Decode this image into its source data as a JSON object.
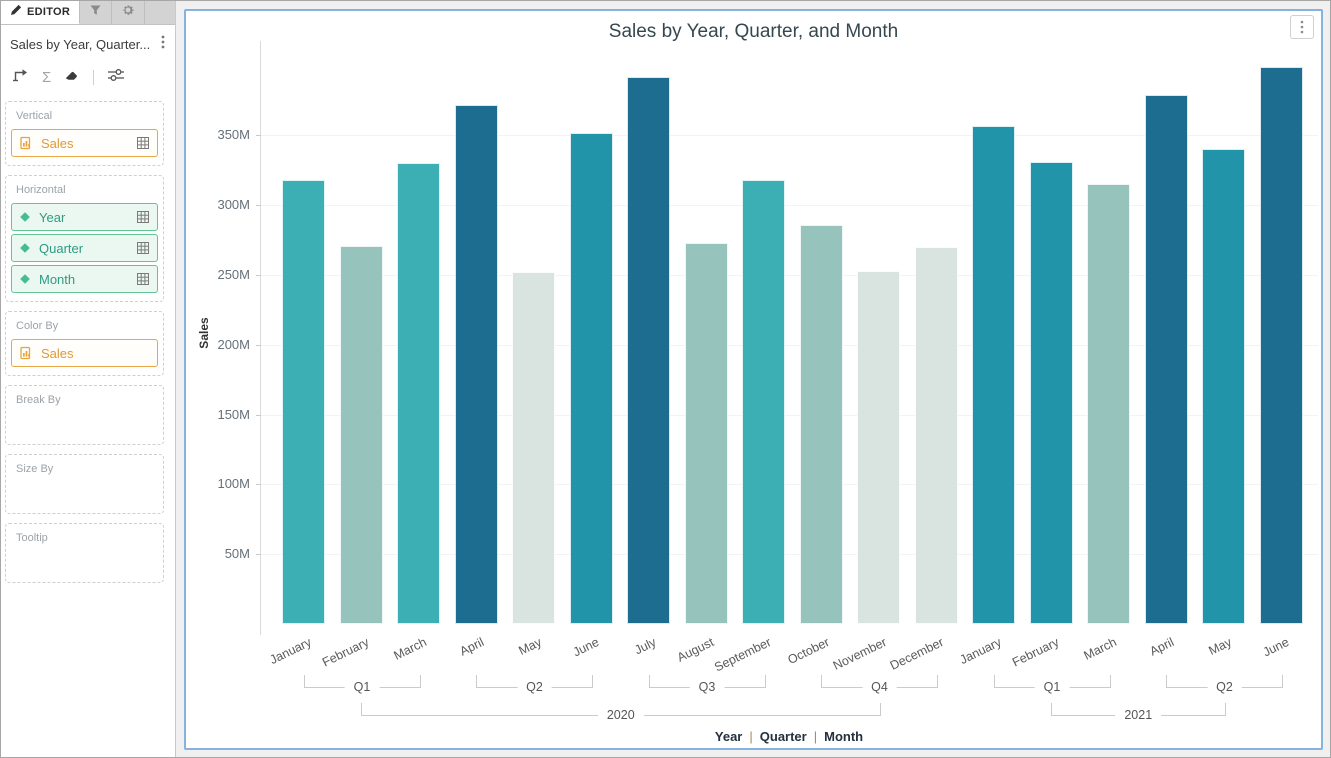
{
  "sidebar": {
    "tabs": [
      {
        "name": "editor",
        "label": "EDITOR",
        "icon": "pencil-icon",
        "active": true
      },
      {
        "name": "filters",
        "icon": "filter-icon",
        "active": false
      },
      {
        "name": "settings",
        "icon": "gear-icon",
        "active": false
      }
    ],
    "widget_title": "Sales by Year, Quarter...",
    "toolbar_icons": [
      "drill-path-icon",
      "sigma-icon",
      "eraser-icon",
      "sliders-icon"
    ],
    "sections": [
      {
        "label": "Vertical",
        "pills": [
          {
            "label": "Sales",
            "type": "measure",
            "grid_icon": true
          }
        ]
      },
      {
        "label": "Horizontal",
        "pills": [
          {
            "label": "Year",
            "type": "dimension",
            "grid_icon": true
          },
          {
            "label": "Quarter",
            "type": "dimension",
            "grid_icon": true
          },
          {
            "label": "Month",
            "type": "dimension",
            "grid_icon": true
          }
        ]
      },
      {
        "label": "Color By",
        "pills": [
          {
            "label": "Sales",
            "type": "measure",
            "grid_icon": false
          }
        ]
      },
      {
        "label": "Break By",
        "pills": []
      },
      {
        "label": "Size By",
        "pills": []
      },
      {
        "label": "Tooltip",
        "pills": []
      }
    ]
  },
  "chart_data": {
    "type": "bar",
    "title": "Sales by Year, Quarter, and Month",
    "ylabel": "Sales",
    "xlabel": "",
    "unit": "M",
    "ylim": [
      0,
      418
    ],
    "grid": true,
    "y_ticks": [
      "50M",
      "100M",
      "150M",
      "200M",
      "250M",
      "300M",
      "350M"
    ],
    "legend": [
      "Year",
      "Quarter",
      "Month"
    ],
    "legend_separator": "|",
    "points": [
      {
        "year": "2020",
        "quarter": "Q1",
        "month": "January",
        "value": 318,
        "color": "#3CAFB4"
      },
      {
        "year": "2020",
        "quarter": "Q1",
        "month": "February",
        "value": 271,
        "color": "#96C3BC"
      },
      {
        "year": "2020",
        "quarter": "Q1",
        "month": "March",
        "value": 330,
        "color": "#3CAFB4"
      },
      {
        "year": "2020",
        "quarter": "Q2",
        "month": "April",
        "value": 372,
        "color": "#1C6D90"
      },
      {
        "year": "2020",
        "quarter": "Q2",
        "month": "May",
        "value": 252,
        "color": "#D9E4E0"
      },
      {
        "year": "2020",
        "quarter": "Q2",
        "month": "June",
        "value": 352,
        "color": "#2294A9"
      },
      {
        "year": "2020",
        "quarter": "Q3",
        "month": "July",
        "value": 392,
        "color": "#1C6D90"
      },
      {
        "year": "2020",
        "quarter": "Q3",
        "month": "August",
        "value": 273,
        "color": "#96C3BC"
      },
      {
        "year": "2020",
        "quarter": "Q3",
        "month": "September",
        "value": 318,
        "color": "#3CAFB4"
      },
      {
        "year": "2020",
        "quarter": "Q4",
        "month": "October",
        "value": 286,
        "color": "#96C3BC"
      },
      {
        "year": "2020",
        "quarter": "Q4",
        "month": "November",
        "value": 253,
        "color": "#D9E4E0"
      },
      {
        "year": "2020",
        "quarter": "Q4",
        "month": "December",
        "value": 270,
        "color": "#D9E4E0"
      },
      {
        "year": "2021",
        "quarter": "Q1",
        "month": "January",
        "value": 357,
        "color": "#2294A9"
      },
      {
        "year": "2021",
        "quarter": "Q1",
        "month": "February",
        "value": 331,
        "color": "#2294A9"
      },
      {
        "year": "2021",
        "quarter": "Q1",
        "month": "March",
        "value": 315,
        "color": "#96C3BC"
      },
      {
        "year": "2021",
        "quarter": "Q2",
        "month": "April",
        "value": 379,
        "color": "#1C6D90"
      },
      {
        "year": "2021",
        "quarter": "Q2",
        "month": "May",
        "value": 340,
        "color": "#2294A9"
      },
      {
        "year": "2021",
        "quarter": "Q2",
        "month": "June",
        "value": 399,
        "color": "#1C6D90"
      }
    ]
  },
  "colors": {
    "measure_accent": "#E8A33D",
    "dimension_accent": "#45BD8C",
    "dimension_text": "#2E9B82",
    "card_border": "#86B2DF",
    "bracket_line": "#CBCBCB",
    "legend_separator": "#A98B4F",
    "title_color": "#37474F",
    "bar_palette": [
      "#D9E4E0",
      "#96C3BC",
      "#3CAFB4",
      "#2294A9",
      "#1C6D90"
    ]
  }
}
